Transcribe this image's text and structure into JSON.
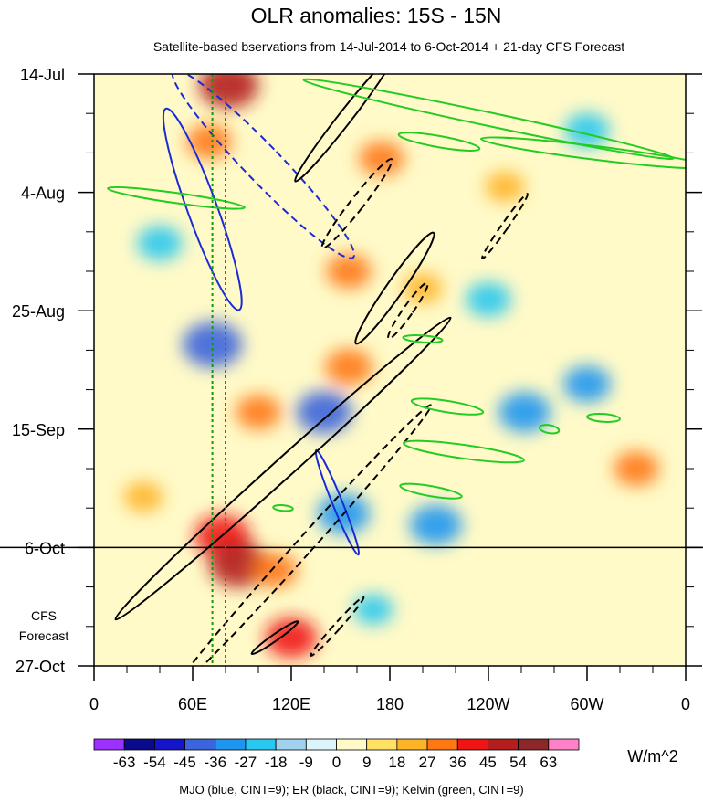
{
  "chart_data": {
    "type": "heatmap",
    "title": "OLR anomalies: 15S - 15N",
    "subtitle": "Satellite-based bservations from 14-Jul-2014 to 6-Oct-2014 + 21-day CFS Forecast",
    "x_ticks": [
      "0",
      "60E",
      "120E",
      "180",
      "120W",
      "60W",
      "0"
    ],
    "x_range": [
      0,
      360
    ],
    "y_ticks": [
      "14-Jul",
      "4-Aug",
      "25-Aug",
      "15-Sep",
      "6-Oct",
      "27-Oct"
    ],
    "y_range_days": [
      0,
      105
    ],
    "forecast_start_day": 84,
    "forecast_label_line1": "CFS",
    "forecast_label_line2": "Forecast",
    "reference_lines_lon": [
      72,
      80
    ],
    "colorbar": {
      "unit": "W/m^2",
      "levels": [
        "-63",
        "-54",
        "-45",
        "-36",
        "-27",
        "-18",
        "-9",
        "0",
        "9",
        "18",
        "27",
        "36",
        "45",
        "54",
        "63"
      ],
      "colors": [
        "#9b30ff",
        "#0a0a8c",
        "#1414c8",
        "#3c64dc",
        "#1e96f0",
        "#28c8f0",
        "#a0d2f0",
        "#dcf5fa",
        "#fffac8",
        "#ffe164",
        "#ffb428",
        "#ff7814",
        "#f01414",
        "#b41e1e",
        "#8c2828",
        "#ff82c8"
      ]
    },
    "anomaly_blobs": [
      {
        "lon": 82,
        "day": 2,
        "value": 45
      },
      {
        "lon": 70,
        "day": 12,
        "value": 27
      },
      {
        "lon": 72,
        "day": 48,
        "value": -45
      },
      {
        "lon": 78,
        "day": 82,
        "value": 40
      },
      {
        "lon": 88,
        "day": 87,
        "value": 45
      },
      {
        "lon": 110,
        "day": 88,
        "value": 27
      },
      {
        "lon": 120,
        "day": 100,
        "value": 36
      },
      {
        "lon": 155,
        "day": 52,
        "value": 30
      },
      {
        "lon": 155,
        "day": 35,
        "value": 27
      },
      {
        "lon": 140,
        "day": 60,
        "value": -40
      },
      {
        "lon": 152,
        "day": 78,
        "value": -36
      },
      {
        "lon": 208,
        "day": 80,
        "value": -36
      },
      {
        "lon": 240,
        "day": 40,
        "value": -27
      },
      {
        "lon": 262,
        "day": 60,
        "value": -36
      },
      {
        "lon": 300,
        "day": 55,
        "value": -30
      },
      {
        "lon": 40,
        "day": 30,
        "value": -27
      },
      {
        "lon": 30,
        "day": 75,
        "value": 20
      },
      {
        "lon": 175,
        "day": 15,
        "value": 27
      },
      {
        "lon": 200,
        "day": 38,
        "value": 20
      },
      {
        "lon": 300,
        "day": 10,
        "value": -27
      },
      {
        "lon": 170,
        "day": 95,
        "value": -20
      },
      {
        "lon": 330,
        "day": 70,
        "value": 27
      },
      {
        "lon": 250,
        "day": 20,
        "value": 20
      },
      {
        "lon": 100,
        "day": 60,
        "value": 27
      }
    ],
    "mjo_contours": [
      {
        "lon_center": 66,
        "day_center": 24,
        "lon_radius": 9,
        "day_radius": 19,
        "angle": -20,
        "dashed": false
      },
      {
        "lon_center": 103,
        "day_center": 16,
        "lon_radius": 11,
        "day_radius": 23,
        "angle": -44,
        "dashed": true
      },
      {
        "lon_center": 148,
        "day_center": 76,
        "lon_radius": 3,
        "day_radius": 10,
        "angle": -22,
        "dashed": false
      }
    ],
    "er_contours": [
      {
        "lon_center": 115,
        "day_center": 70,
        "lon_radius": 6,
        "day_radius": 40,
        "angle": 48,
        "dashed": false
      },
      {
        "lon_center": 152,
        "day_center": 8,
        "lon_radius": 4,
        "day_radius": 14,
        "angle": 38,
        "dashed": false
      },
      {
        "lon_center": 160,
        "day_center": 23,
        "lon_radius": 4,
        "day_radius": 10,
        "angle": 38,
        "dashed": true
      },
      {
        "lon_center": 183,
        "day_center": 38,
        "lon_radius": 5,
        "day_radius": 12,
        "angle": 35,
        "dashed": false
      },
      {
        "lon_center": 191,
        "day_center": 42,
        "lon_radius": 3,
        "day_radius": 6,
        "angle": 35,
        "dashed": true
      },
      {
        "lon_center": 250,
        "day_center": 27,
        "lon_radius": 2,
        "day_radius": 7,
        "angle": 35,
        "dashed": true
      },
      {
        "lon_center": 127,
        "day_center": 84,
        "lon_radius": 5,
        "day_radius": 34,
        "angle": 42,
        "dashed": true
      },
      {
        "lon_center": 110,
        "day_center": 100,
        "lon_radius": 2,
        "day_radius": 5,
        "angle": 55,
        "dashed": false
      },
      {
        "lon_center": 148,
        "day_center": 98,
        "lon_radius": 2,
        "day_radius": 7,
        "angle": 42,
        "dashed": true
      }
    ],
    "kelvin_contours": [
      {
        "lon_center": 240,
        "day_center": 8,
        "lon_radius": 115,
        "day_radius": 1.2,
        "angle": 12,
        "dashed": false
      },
      {
        "lon_center": 305,
        "day_center": 14,
        "lon_radius": 70,
        "day_radius": 1.2,
        "angle": 7,
        "dashed": false
      },
      {
        "lon_center": 210,
        "day_center": 12,
        "lon_radius": 25,
        "day_radius": 1,
        "angle": 10,
        "dashed": false
      },
      {
        "lon_center": 50,
        "day_center": 22,
        "lon_radius": 42,
        "day_radius": 0.9,
        "angle": 8,
        "dashed": false
      },
      {
        "lon_center": 200,
        "day_center": 47,
        "lon_radius": 12,
        "day_radius": 0.6,
        "angle": 4,
        "dashed": false
      },
      {
        "lon_center": 215,
        "day_center": 59,
        "lon_radius": 22,
        "day_radius": 1,
        "angle": 9,
        "dashed": false
      },
      {
        "lon_center": 225,
        "day_center": 67,
        "lon_radius": 37,
        "day_radius": 1.2,
        "angle": 8,
        "dashed": false
      },
      {
        "lon_center": 205,
        "day_center": 74,
        "lon_radius": 19,
        "day_radius": 0.9,
        "angle": 10,
        "dashed": false
      },
      {
        "lon_center": 310,
        "day_center": 61,
        "lon_radius": 10,
        "day_radius": 0.7,
        "angle": 4,
        "dashed": false
      },
      {
        "lon_center": 277,
        "day_center": 63,
        "lon_radius": 6,
        "day_radius": 0.7,
        "angle": 10,
        "dashed": false
      },
      {
        "lon_center": 115,
        "day_center": 77,
        "lon_radius": 6,
        "day_radius": 0.5,
        "angle": 5,
        "dashed": false
      }
    ]
  },
  "footer": {
    "legend_note": "MJO (blue, CINT=9); ER (black, CINT=9); Kelvin (green, CINT=9)"
  }
}
